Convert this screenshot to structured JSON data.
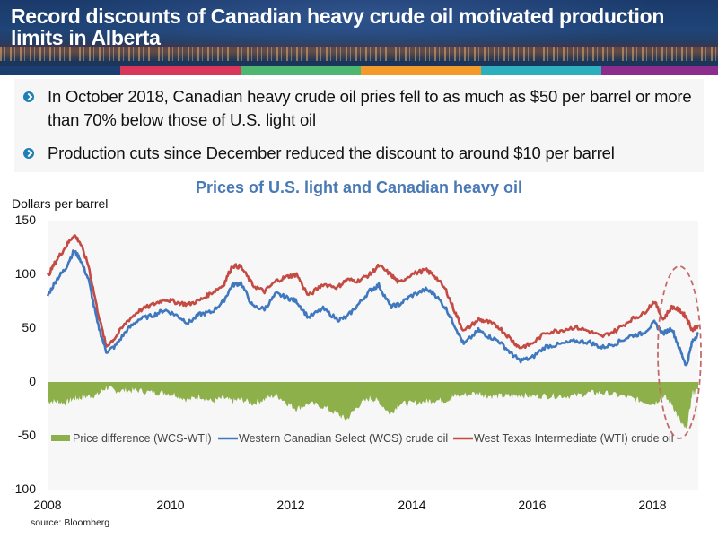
{
  "header": {
    "title": "Record discounts of Canadian heavy crude oil motivated production limits in Alberta",
    "color_bars": [
      "#1c3e6e",
      "#d9375a",
      "#4fb870",
      "#f39a2a",
      "#2cb0be",
      "#8c2c8c"
    ]
  },
  "bullets": [
    {
      "icon": "chevron-circle-icon",
      "text": "In October 2018, Canadian heavy crude oil pries fell to as much as $50 per barrel or more than 70% below those of U.S. light oil"
    },
    {
      "icon": "chevron-circle-icon",
      "text": "Production cuts since December reduced the discount to around $10 per barrel"
    }
  ],
  "source": "source:  Bloomberg",
  "chart_data": {
    "type": "line",
    "title": "Prices of U.S. light and Canadian heavy oil",
    "ylabel": "Dollars per barrel",
    "xlabel": "",
    "ylim": [
      -100,
      150
    ],
    "yticks": [
      150,
      100,
      50,
      0,
      -50,
      -100
    ],
    "ytick_labels": [
      "150",
      "100",
      "50",
      "0",
      "-50",
      "-100"
    ],
    "xlim": [
      2008,
      2019.1
    ],
    "xticks": [
      2008,
      2010,
      2012,
      2014,
      2016,
      2018
    ],
    "xtick_labels": [
      "2008",
      "2010",
      "2012",
      "2014",
      "2016",
      "2018"
    ],
    "grid": false,
    "legend_position": "inside-lower",
    "x": [
      2008.0,
      2008.15,
      2008.3,
      2008.45,
      2008.55,
      2008.7,
      2008.85,
      2009.0,
      2009.15,
      2009.35,
      2009.55,
      2009.8,
      2010.0,
      2010.2,
      2010.4,
      2010.6,
      2010.8,
      2011.0,
      2011.15,
      2011.3,
      2011.5,
      2011.7,
      2011.9,
      2012.1,
      2012.25,
      2012.45,
      2012.7,
      2012.95,
      2013.1,
      2013.3,
      2013.5,
      2013.65,
      2013.85,
      2014.0,
      2014.2,
      2014.45,
      2014.6,
      2014.8,
      2014.95,
      2015.1,
      2015.35,
      2015.5,
      2015.7,
      2015.9,
      2016.05,
      2016.25,
      2016.5,
      2016.75,
      2017.0,
      2017.25,
      2017.45,
      2017.7,
      2017.95,
      2018.15,
      2018.35,
      2018.5,
      2018.65,
      2018.8,
      2018.9,
      2019.0,
      2019.1
    ],
    "series": [
      {
        "name": "Price difference (WCS-WTI)",
        "type": "area",
        "color": "#8db04b",
        "values": [
          -18,
          -18,
          -20,
          -15,
          -15,
          -13,
          -12,
          -5,
          -8,
          -8,
          -8,
          -10,
          -10,
          -12,
          -17,
          -13,
          -18,
          -15,
          -18,
          -16,
          -20,
          -16,
          -12,
          -20,
          -25,
          -20,
          -23,
          -30,
          -35,
          -22,
          -15,
          -18,
          -30,
          -20,
          -20,
          -18,
          -17,
          -17,
          -13,
          -12,
          -10,
          -13,
          -13,
          -13,
          -12,
          -13,
          -13,
          -13,
          -13,
          -10,
          -10,
          -12,
          -15,
          -18,
          -20,
          -13,
          -20,
          -38,
          -45,
          -10,
          -8
        ]
      },
      {
        "name": "Western Canadian Select (WCS) crude oil",
        "type": "line",
        "color": "#3f78bf",
        "values": [
          80,
          95,
          105,
          122,
          115,
          95,
          55,
          28,
          33,
          48,
          58,
          62,
          67,
          62,
          55,
          63,
          65,
          75,
          90,
          92,
          70,
          68,
          82,
          78,
          75,
          60,
          68,
          58,
          60,
          72,
          85,
          90,
          70,
          72,
          80,
          86,
          82,
          68,
          52,
          35,
          48,
          43,
          38,
          27,
          20,
          22,
          33,
          35,
          38,
          37,
          32,
          36,
          43,
          45,
          55,
          45,
          50,
          28,
          15,
          38,
          45
        ]
      },
      {
        "name": "West Texas Intermediate (WTI) crude oil",
        "type": "line",
        "color": "#c44a44",
        "values": [
          98,
          113,
          125,
          137,
          130,
          108,
          67,
          33,
          41,
          56,
          66,
          72,
          77,
          74,
          72,
          76,
          83,
          90,
          108,
          107,
          90,
          84,
          94,
          98,
          100,
          80,
          91,
          88,
          95,
          94,
          100,
          108,
          100,
          92,
          100,
          104,
          99,
          85,
          65,
          47,
          58,
          56,
          51,
          40,
          32,
          35,
          46,
          48,
          51,
          47,
          42,
          48,
          58,
          63,
          75,
          58,
          70,
          66,
          60,
          48,
          53
        ]
      }
    ],
    "annotation": {
      "type": "dashed-ellipse",
      "color": "#c46a6a",
      "around_x": [
        2018.45,
        2019.1
      ],
      "around_y": [
        -50,
        78
      ]
    }
  }
}
